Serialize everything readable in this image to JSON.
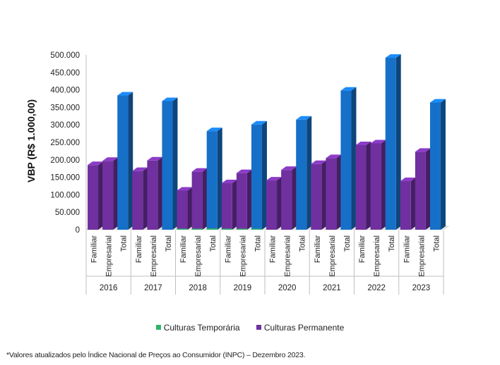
{
  "chart_data": {
    "type": "bar",
    "ylabel": "VBP (R$ 1.000,00)",
    "ylim": [
      0,
      500000
    ],
    "yticks": [
      "0",
      "50.000",
      "100.000",
      "150.000",
      "200.000",
      "250.000",
      "300.000",
      "350.000",
      "400.000",
      "450.000",
      "500.000"
    ],
    "years": [
      "2016",
      "2017",
      "2018",
      "2019",
      "2020",
      "2021",
      "2022",
      "2023"
    ],
    "categories": [
      "Familiar",
      "Empresarial",
      "Total"
    ],
    "series": [
      {
        "name": "Culturas Temporária",
        "color": "#2db36a",
        "values": [
          [
            0,
            0,
            0
          ],
          [
            0,
            0,
            0
          ],
          [
            1500,
            2500,
            4000
          ],
          [
            1000,
            2000,
            3000
          ],
          [
            0,
            0,
            0
          ],
          [
            0,
            0,
            0
          ],
          [
            0,
            0,
            0
          ],
          [
            0,
            0,
            0
          ]
        ]
      },
      {
        "name": "Culturas Permanente",
        "color": "#7030a0",
        "values": [
          [
            185000,
            197000,
            384000
          ],
          [
            168000,
            198000,
            368000
          ],
          [
            112000,
            166000,
            282000
          ],
          [
            133000,
            162000,
            301000
          ],
          [
            141000,
            171000,
            315000
          ],
          [
            188000,
            205000,
            398000
          ],
          [
            242000,
            247000,
            492000
          ],
          [
            139000,
            223000,
            364000
          ]
        ]
      }
    ],
    "total_color": "#1670c8",
    "legend": [
      "Culturas Temporária",
      "Culturas Permanente"
    ],
    "footnote": "*Valores atualizados pelo Índice Nacional de Preços ao Consumidor (INPC) – Dezembro 2023."
  }
}
